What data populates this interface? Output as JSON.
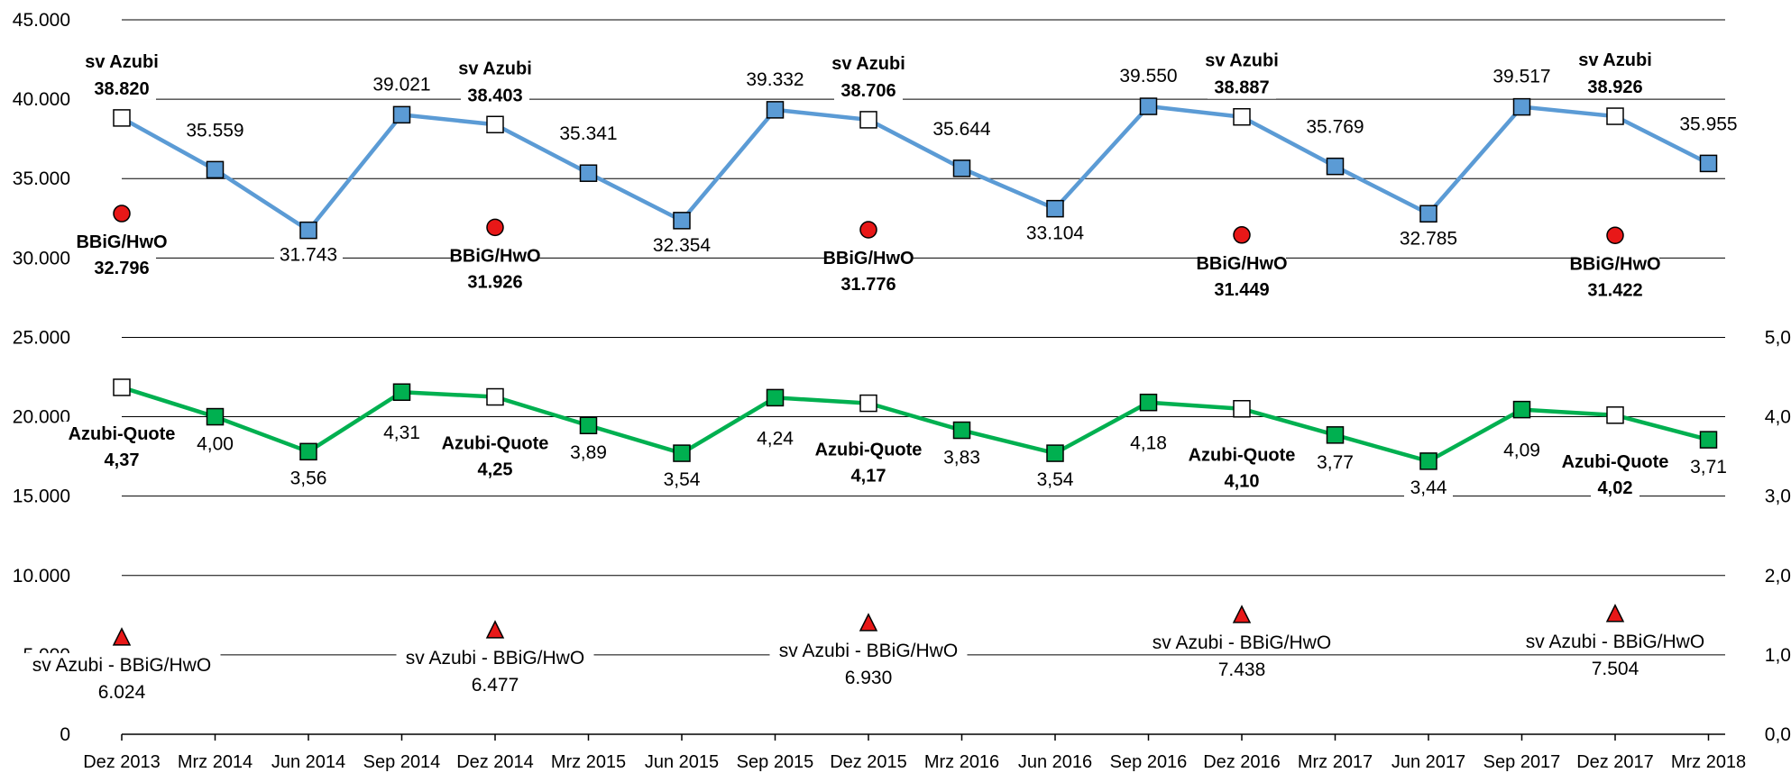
{
  "chart_data": {
    "type": "line",
    "categories": [
      "Dez 2013",
      "Mrz 2014",
      "Jun 2014",
      "Sep 2014",
      "Dez 2014",
      "Mrz 2015",
      "Jun 2015",
      "Sep 2015",
      "Dez 2015",
      "Mrz 2016",
      "Jun 2016",
      "Sep 2016",
      "Dez 2016",
      "Mrz 2017",
      "Jun 2017",
      "Sep 2017",
      "Dez 2017",
      "Mrz 2018"
    ],
    "left_axis": {
      "ylim": [
        0,
        45000
      ],
      "ticks": [
        "0",
        "5.000",
        "10.000",
        "15.000",
        "20.000",
        "25.000",
        "30.000",
        "35.000",
        "40.000",
        "45.000"
      ]
    },
    "right_axis": {
      "ylim": [
        0,
        9
      ],
      "ticks": [
        "0,0",
        "1,0",
        "2,0",
        "3,0",
        "4,0",
        "5,0"
      ]
    },
    "grid": true,
    "series": [
      {
        "axis": "left",
        "color": "#5B9BD5",
        "values": [
          38820,
          35559,
          31743,
          39021,
          38403,
          35341,
          32354,
          39332,
          38706,
          35644,
          33104,
          39550,
          38887,
          35769,
          32785,
          39517,
          38926,
          35955
        ],
        "labels": [
          "",
          "35.559",
          "31.743",
          "39.021",
          "",
          "35.341",
          "32.354",
          "39.332",
          "",
          "35.644",
          "33.104",
          "39.550",
          "",
          "35.769",
          "32.785",
          "39.517",
          "",
          "35.955"
        ],
        "highlight_indices": [
          0,
          4,
          8,
          12,
          16
        ]
      },
      {
        "axis": "right",
        "color": "#00B050",
        "values": [
          4.37,
          4.0,
          3.56,
          4.31,
          4.25,
          3.89,
          3.54,
          4.24,
          4.17,
          3.83,
          3.54,
          4.18,
          4.1,
          3.77,
          3.44,
          4.09,
          4.02,
          3.71
        ],
        "labels": [
          "",
          "4,00",
          "3,56",
          "4,31",
          "",
          "3,89",
          "3,54",
          "4,24",
          "",
          "3,83",
          "3,54",
          "4,18",
          "",
          "3,77",
          "3,44",
          "4,09",
          "",
          "3,71"
        ],
        "highlight_indices": [
          0,
          4,
          8,
          12,
          16
        ]
      }
    ],
    "bbig_points": [
      {
        "index": 0,
        "value": 32796
      },
      {
        "index": 4,
        "value": 31926
      },
      {
        "index": 8,
        "value": 31776
      },
      {
        "index": 12,
        "value": 31449
      },
      {
        "index": 16,
        "value": 31422
      }
    ],
    "diff_points": [
      {
        "index": 0,
        "value": 6024
      },
      {
        "index": 4,
        "value": 6477
      },
      {
        "index": 8,
        "value": 6930
      },
      {
        "index": 12,
        "value": 7438
      },
      {
        "index": 16,
        "value": 7504
      }
    ],
    "annotations": [
      {
        "index": 0,
        "sv_title": "sv Azubi",
        "sv_value": "38.820",
        "bbig_title": "BBiG/HwO",
        "bbig_value": "32.796",
        "quote_title": "Azubi-Quote",
        "quote_value": "4,37",
        "diff_title": "sv Azubi - BBiG/HwO",
        "diff_value": "6.024"
      },
      {
        "index": 4,
        "sv_title": "sv Azubi",
        "sv_value": "38.403",
        "bbig_title": "BBiG/HwO",
        "bbig_value": "31.926",
        "quote_title": "Azubi-Quote",
        "quote_value": "4,25",
        "diff_title": "sv Azubi - BBiG/HwO",
        "diff_value": "6.477"
      },
      {
        "index": 8,
        "sv_title": "sv Azubi",
        "sv_value": "38.706",
        "bbig_title": "BBiG/HwO",
        "bbig_value": "31.776",
        "quote_title": "Azubi-Quote",
        "quote_value": "4,17",
        "diff_title": "sv Azubi - BBiG/HwO",
        "diff_value": "6.930"
      },
      {
        "index": 12,
        "sv_title": "sv Azubi",
        "sv_value": "38.887",
        "bbig_title": "BBiG/HwO",
        "bbig_value": "31.449",
        "quote_title": "Azubi-Quote",
        "quote_value": "4,10",
        "diff_title": "sv Azubi - BBiG/HwO",
        "diff_value": "7.438"
      },
      {
        "index": 16,
        "sv_title": "sv Azubi",
        "sv_value": "38.926",
        "bbig_title": "BBiG/HwO",
        "bbig_value": "31.422",
        "quote_title": "Azubi-Quote",
        "quote_value": "4,02",
        "diff_title": "sv Azubi - BBiG/HwO",
        "diff_value": "7.504"
      }
    ],
    "colors": {
      "bbig_marker": "#E81818",
      "diff_marker": "#E81818",
      "grid": "#000000"
    }
  }
}
